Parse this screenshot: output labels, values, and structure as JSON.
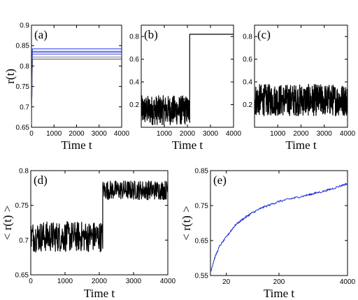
{
  "chart_data": [
    {
      "type": "line",
      "panel_label": "(a)",
      "xlabel": "Time t",
      "ylabel": "r(t)",
      "xlim": [
        0,
        4000
      ],
      "ylim": [
        0.65,
        0.9
      ],
      "xticks": [
        0,
        1000,
        2000,
        3000,
        4000
      ],
      "yticks": [
        0.65,
        0.7,
        0.75,
        0.8,
        0.85,
        0.9
      ],
      "ytick_labels": [
        "0.65",
        "0.7",
        "0.75",
        "0.8",
        "0.85",
        "0.9"
      ],
      "series": [
        {
          "color": "#2233ee",
          "t0_value": 0.65,
          "value": 0.842
        },
        {
          "color": "#3344ee",
          "t0_value": 0.65,
          "value": 0.836
        },
        {
          "color": "#4455dd",
          "t0_value": 0.65,
          "value": 0.833
        },
        {
          "color": "#5566cc",
          "t0_value": 0.65,
          "value": 0.829
        },
        {
          "color": "#7777aa",
          "t0_value": 0.65,
          "value": 0.822
        },
        {
          "color": "#555555",
          "t0_value": 0.65,
          "value": 0.817
        }
      ],
      "grid": false
    },
    {
      "type": "line",
      "panel_label": "(b)",
      "xlabel": "Time t",
      "ylabel": "",
      "xlim": [
        0,
        4000
      ],
      "ylim": [
        0,
        0.9
      ],
      "xticks": [
        1000,
        2000,
        3000,
        4000
      ],
      "yticks": [
        0.2,
        0.4,
        0.6,
        0.8
      ],
      "ytick_labels": [
        "0.2",
        "0.4",
        "0.6",
        "0.8"
      ],
      "series": [
        {
          "color": "#000000",
          "segments": [
            {
              "x": [
                0,
                2100
              ],
              "kind": "noise",
              "mean": 0.15,
              "spread": 0.13
            },
            {
              "x": [
                2100,
                4000
              ],
              "kind": "constant",
              "value": 0.82
            }
          ]
        }
      ],
      "grid": false
    },
    {
      "type": "line",
      "panel_label": "(c)",
      "xlabel": "Time t",
      "ylabel": "",
      "xlim": [
        0,
        4000
      ],
      "ylim": [
        0,
        0.9
      ],
      "xticks": [
        1000,
        2000,
        3000,
        4000
      ],
      "yticks": [
        0.2,
        0.4,
        0.6,
        0.8
      ],
      "ytick_labels": [
        "0.2",
        "0.4",
        "0.6",
        "0.8"
      ],
      "series": [
        {
          "color": "#000000",
          "segments": [
            {
              "x": [
                0,
                4000
              ],
              "kind": "noise",
              "mean": 0.24,
              "spread": 0.14
            }
          ]
        }
      ],
      "grid": false
    },
    {
      "type": "line",
      "panel_label": "(d)",
      "xlabel": "Time t",
      "ylabel": "< r(t) >",
      "xlim": [
        0,
        4000
      ],
      "ylim": [
        0.65,
        0.8
      ],
      "xticks": [
        0,
        1000,
        2000,
        3000,
        4000
      ],
      "yticks": [
        0.65,
        0.7,
        0.75,
        0.8
      ],
      "ytick_labels": [
        "0.65",
        "0.7",
        "0.75",
        "0.8"
      ],
      "series": [
        {
          "color": "#000000",
          "segments": [
            {
              "x": [
                0,
                2100
              ],
              "kind": "noise",
              "mean": 0.705,
              "spread": 0.022
            },
            {
              "x": [
                2100,
                4000
              ],
              "kind": "noise",
              "mean": 0.772,
              "spread": 0.014
            }
          ]
        }
      ],
      "grid": false
    },
    {
      "type": "line",
      "panel_label": "(e)",
      "xlabel": "Time t",
      "ylabel": "< r(t) >",
      "xscale": "log",
      "xlim": [
        10,
        4000
      ],
      "ylim": [
        0.55,
        0.85
      ],
      "xticks": [
        20,
        200,
        4000
      ],
      "xtick_labels": [
        "20",
        "200",
        "4000"
      ],
      "yticks": [
        0.55,
        0.65,
        0.75,
        0.85
      ],
      "ytick_labels": [
        "0.55",
        "0.65",
        "0.75",
        "0.85"
      ],
      "series": [
        {
          "color": "#1a2ad8",
          "x": [
            10,
            12,
            15,
            20,
            25,
            30,
            40,
            50,
            60,
            80,
            100,
            150,
            200,
            300,
            400,
            600,
            800,
            1000,
            1500,
            2000,
            3000,
            4000
          ],
          "y": [
            0.56,
            0.6,
            0.635,
            0.66,
            0.68,
            0.695,
            0.71,
            0.72,
            0.728,
            0.738,
            0.745,
            0.755,
            0.762,
            0.768,
            0.772,
            0.778,
            0.782,
            0.786,
            0.792,
            0.798,
            0.807,
            0.813
          ]
        }
      ],
      "grid": false
    }
  ]
}
